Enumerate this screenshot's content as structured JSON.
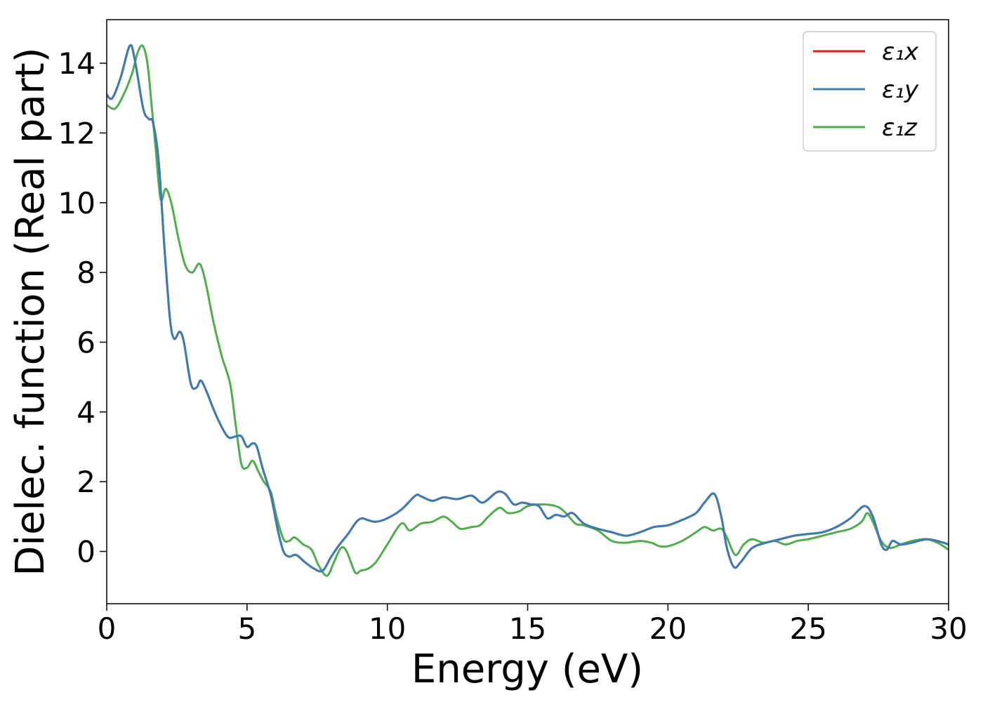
{
  "chart_data": {
    "type": "line",
    "title": "",
    "xlabel": "Energy (eV)",
    "ylabel": "Dielec. function (Real part)",
    "xlim": [
      0,
      30
    ],
    "ylim": [
      -1.5,
      15.25
    ],
    "xticks": [
      0,
      5,
      10,
      15,
      20,
      25,
      30
    ],
    "yticks": [
      0,
      2,
      4,
      6,
      8,
      10,
      12,
      14
    ],
    "grid": false,
    "legend_position": "top-right",
    "series": [
      {
        "name": "ε₁x",
        "color": "#e41a1c",
        "points": [
          [
            0,
            13.1
          ],
          [
            0.2,
            13.0
          ],
          [
            0.5,
            13.6
          ],
          [
            0.82,
            14.5
          ],
          [
            1.0,
            14.1
          ],
          [
            1.3,
            12.7
          ],
          [
            1.5,
            12.4
          ],
          [
            1.65,
            12.3
          ],
          [
            1.85,
            11.2
          ],
          [
            2.05,
            8.8
          ],
          [
            2.25,
            6.7
          ],
          [
            2.4,
            6.1
          ],
          [
            2.6,
            6.3
          ],
          [
            2.75,
            6.0
          ],
          [
            3.0,
            4.8
          ],
          [
            3.2,
            4.7
          ],
          [
            3.35,
            4.9
          ],
          [
            3.55,
            4.6
          ],
          [
            3.9,
            3.9
          ],
          [
            4.3,
            3.3
          ],
          [
            4.6,
            3.3
          ],
          [
            4.8,
            3.3
          ],
          [
            5.0,
            3.0
          ],
          [
            5.2,
            3.1
          ],
          [
            5.35,
            3.0
          ],
          [
            5.55,
            2.4
          ],
          [
            5.85,
            1.6
          ],
          [
            6.1,
            0.6
          ],
          [
            6.3,
            0.0
          ],
          [
            6.5,
            -0.15
          ],
          [
            6.75,
            -0.1
          ],
          [
            7.05,
            -0.3
          ],
          [
            7.4,
            -0.5
          ],
          [
            7.7,
            -0.55
          ],
          [
            8.0,
            -0.15
          ],
          [
            8.3,
            0.2
          ],
          [
            8.6,
            0.5
          ],
          [
            8.9,
            0.85
          ],
          [
            9.1,
            0.95
          ],
          [
            9.3,
            0.9
          ],
          [
            9.6,
            0.85
          ],
          [
            10.0,
            0.95
          ],
          [
            10.5,
            1.2
          ],
          [
            11.0,
            1.6
          ],
          [
            11.2,
            1.58
          ],
          [
            11.6,
            1.45
          ],
          [
            12.0,
            1.55
          ],
          [
            12.5,
            1.5
          ],
          [
            13.0,
            1.6
          ],
          [
            13.4,
            1.4
          ],
          [
            13.9,
            1.7
          ],
          [
            14.2,
            1.65
          ],
          [
            14.5,
            1.35
          ],
          [
            14.8,
            1.4
          ],
          [
            15.1,
            1.35
          ],
          [
            15.4,
            1.3
          ],
          [
            15.7,
            0.95
          ],
          [
            16.0,
            1.05
          ],
          [
            16.3,
            1.0
          ],
          [
            16.6,
            1.1
          ],
          [
            17.0,
            0.8
          ],
          [
            17.5,
            0.65
          ],
          [
            18.0,
            0.55
          ],
          [
            18.5,
            0.45
          ],
          [
            19.0,
            0.55
          ],
          [
            19.5,
            0.7
          ],
          [
            20.0,
            0.75
          ],
          [
            20.5,
            0.9
          ],
          [
            21.0,
            1.1
          ],
          [
            21.3,
            1.4
          ],
          [
            21.65,
            1.65
          ],
          [
            21.9,
            1.0
          ],
          [
            22.1,
            0.1
          ],
          [
            22.35,
            -0.45
          ],
          [
            22.6,
            -0.3
          ],
          [
            23.0,
            0.1
          ],
          [
            23.5,
            0.25
          ],
          [
            24.0,
            0.35
          ],
          [
            24.5,
            0.45
          ],
          [
            25.0,
            0.5
          ],
          [
            25.5,
            0.55
          ],
          [
            26.0,
            0.7
          ],
          [
            26.5,
            0.95
          ],
          [
            27.0,
            1.3
          ],
          [
            27.3,
            1.0
          ],
          [
            27.6,
            0.2
          ],
          [
            27.8,
            0.05
          ],
          [
            28.0,
            0.3
          ],
          [
            28.3,
            0.2
          ],
          [
            28.7,
            0.25
          ],
          [
            29.2,
            0.35
          ],
          [
            29.6,
            0.3
          ],
          [
            30.0,
            0.2
          ]
        ]
      },
      {
        "name": "ε₁y",
        "color": "#377eb8",
        "points": [
          [
            0,
            13.1
          ],
          [
            0.2,
            13.0
          ],
          [
            0.5,
            13.6
          ],
          [
            0.82,
            14.5
          ],
          [
            1.0,
            14.1
          ],
          [
            1.3,
            12.7
          ],
          [
            1.5,
            12.4
          ],
          [
            1.65,
            12.3
          ],
          [
            1.85,
            11.2
          ],
          [
            2.05,
            8.8
          ],
          [
            2.25,
            6.7
          ],
          [
            2.4,
            6.1
          ],
          [
            2.6,
            6.3
          ],
          [
            2.75,
            6.0
          ],
          [
            3.0,
            4.8
          ],
          [
            3.2,
            4.7
          ],
          [
            3.35,
            4.9
          ],
          [
            3.55,
            4.6
          ],
          [
            3.9,
            3.9
          ],
          [
            4.3,
            3.3
          ],
          [
            4.6,
            3.3
          ],
          [
            4.8,
            3.3
          ],
          [
            5.0,
            3.0
          ],
          [
            5.2,
            3.1
          ],
          [
            5.35,
            3.0
          ],
          [
            5.55,
            2.4
          ],
          [
            5.85,
            1.6
          ],
          [
            6.1,
            0.6
          ],
          [
            6.3,
            0.0
          ],
          [
            6.5,
            -0.15
          ],
          [
            6.75,
            -0.1
          ],
          [
            7.05,
            -0.3
          ],
          [
            7.4,
            -0.5
          ],
          [
            7.7,
            -0.55
          ],
          [
            8.0,
            -0.15
          ],
          [
            8.3,
            0.2
          ],
          [
            8.6,
            0.5
          ],
          [
            8.9,
            0.85
          ],
          [
            9.1,
            0.95
          ],
          [
            9.3,
            0.9
          ],
          [
            9.6,
            0.85
          ],
          [
            10.0,
            0.95
          ],
          [
            10.5,
            1.2
          ],
          [
            11.0,
            1.6
          ],
          [
            11.2,
            1.58
          ],
          [
            11.6,
            1.45
          ],
          [
            12.0,
            1.55
          ],
          [
            12.5,
            1.5
          ],
          [
            13.0,
            1.6
          ],
          [
            13.4,
            1.4
          ],
          [
            13.9,
            1.7
          ],
          [
            14.2,
            1.65
          ],
          [
            14.5,
            1.35
          ],
          [
            14.8,
            1.4
          ],
          [
            15.1,
            1.35
          ],
          [
            15.4,
            1.3
          ],
          [
            15.7,
            0.95
          ],
          [
            16.0,
            1.05
          ],
          [
            16.3,
            1.0
          ],
          [
            16.6,
            1.1
          ],
          [
            17.0,
            0.8
          ],
          [
            17.5,
            0.65
          ],
          [
            18.0,
            0.55
          ],
          [
            18.5,
            0.45
          ],
          [
            19.0,
            0.55
          ],
          [
            19.5,
            0.7
          ],
          [
            20.0,
            0.75
          ],
          [
            20.5,
            0.9
          ],
          [
            21.0,
            1.1
          ],
          [
            21.3,
            1.4
          ],
          [
            21.65,
            1.65
          ],
          [
            21.9,
            1.0
          ],
          [
            22.1,
            0.1
          ],
          [
            22.35,
            -0.45
          ],
          [
            22.6,
            -0.3
          ],
          [
            23.0,
            0.1
          ],
          [
            23.5,
            0.25
          ],
          [
            24.0,
            0.35
          ],
          [
            24.5,
            0.45
          ],
          [
            25.0,
            0.5
          ],
          [
            25.5,
            0.55
          ],
          [
            26.0,
            0.7
          ],
          [
            26.5,
            0.95
          ],
          [
            27.0,
            1.3
          ],
          [
            27.3,
            1.0
          ],
          [
            27.6,
            0.2
          ],
          [
            27.8,
            0.05
          ],
          [
            28.0,
            0.3
          ],
          [
            28.3,
            0.2
          ],
          [
            28.7,
            0.25
          ],
          [
            29.2,
            0.35
          ],
          [
            29.6,
            0.3
          ],
          [
            30.0,
            0.2
          ]
        ]
      },
      {
        "name": "ε₁z",
        "color": "#4daf4a",
        "points": [
          [
            0,
            12.8
          ],
          [
            0.3,
            12.7
          ],
          [
            0.6,
            13.1
          ],
          [
            0.9,
            13.7
          ],
          [
            1.1,
            14.3
          ],
          [
            1.28,
            14.5
          ],
          [
            1.45,
            14.0
          ],
          [
            1.6,
            12.8
          ],
          [
            1.75,
            11.5
          ],
          [
            1.92,
            10.1
          ],
          [
            2.1,
            10.4
          ],
          [
            2.3,
            10.0
          ],
          [
            2.55,
            9.0
          ],
          [
            2.8,
            8.2
          ],
          [
            3.05,
            8.0
          ],
          [
            3.3,
            8.25
          ],
          [
            3.5,
            7.8
          ],
          [
            3.8,
            6.6
          ],
          [
            4.1,
            5.6
          ],
          [
            4.4,
            4.8
          ],
          [
            4.6,
            3.6
          ],
          [
            4.8,
            2.5
          ],
          [
            5.0,
            2.4
          ],
          [
            5.2,
            2.6
          ],
          [
            5.4,
            2.3
          ],
          [
            5.6,
            2.0
          ],
          [
            5.85,
            1.7
          ],
          [
            6.05,
            1.0
          ],
          [
            6.3,
            0.35
          ],
          [
            6.5,
            0.3
          ],
          [
            6.7,
            0.4
          ],
          [
            7.0,
            0.2
          ],
          [
            7.3,
            0.05
          ],
          [
            7.55,
            -0.4
          ],
          [
            7.85,
            -0.7
          ],
          [
            8.1,
            -0.3
          ],
          [
            8.35,
            0.1
          ],
          [
            8.55,
            0.0
          ],
          [
            8.85,
            -0.6
          ],
          [
            9.05,
            -0.55
          ],
          [
            9.3,
            -0.5
          ],
          [
            9.6,
            -0.3
          ],
          [
            10.0,
            0.2
          ],
          [
            10.5,
            0.8
          ],
          [
            10.8,
            0.6
          ],
          [
            11.2,
            0.8
          ],
          [
            11.6,
            0.85
          ],
          [
            12.0,
            1.0
          ],
          [
            12.3,
            0.85
          ],
          [
            12.6,
            0.65
          ],
          [
            13.0,
            0.7
          ],
          [
            13.3,
            0.75
          ],
          [
            13.6,
            1.0
          ],
          [
            14.0,
            1.25
          ],
          [
            14.3,
            1.1
          ],
          [
            14.7,
            1.15
          ],
          [
            15.0,
            1.3
          ],
          [
            15.5,
            1.35
          ],
          [
            16.0,
            1.3
          ],
          [
            16.3,
            1.15
          ],
          [
            16.7,
            0.8
          ],
          [
            17.0,
            0.75
          ],
          [
            17.5,
            0.6
          ],
          [
            18.0,
            0.3
          ],
          [
            18.5,
            0.25
          ],
          [
            19.0,
            0.3
          ],
          [
            19.4,
            0.25
          ],
          [
            19.7,
            0.15
          ],
          [
            20.0,
            0.15
          ],
          [
            20.5,
            0.3
          ],
          [
            21.0,
            0.55
          ],
          [
            21.3,
            0.7
          ],
          [
            21.6,
            0.6
          ],
          [
            21.9,
            0.65
          ],
          [
            22.1,
            0.4
          ],
          [
            22.4,
            -0.1
          ],
          [
            22.7,
            0.2
          ],
          [
            23.0,
            0.35
          ],
          [
            23.4,
            0.25
          ],
          [
            23.8,
            0.3
          ],
          [
            24.2,
            0.2
          ],
          [
            24.6,
            0.3
          ],
          [
            25.0,
            0.35
          ],
          [
            25.5,
            0.45
          ],
          [
            26.0,
            0.55
          ],
          [
            26.5,
            0.65
          ],
          [
            26.9,
            0.85
          ],
          [
            27.1,
            1.1
          ],
          [
            27.3,
            0.85
          ],
          [
            27.6,
            0.3
          ],
          [
            27.9,
            0.1
          ],
          [
            28.3,
            0.2
          ],
          [
            28.7,
            0.3
          ],
          [
            29.2,
            0.35
          ],
          [
            29.6,
            0.25
          ],
          [
            30.0,
            0.05
          ]
        ]
      }
    ]
  }
}
